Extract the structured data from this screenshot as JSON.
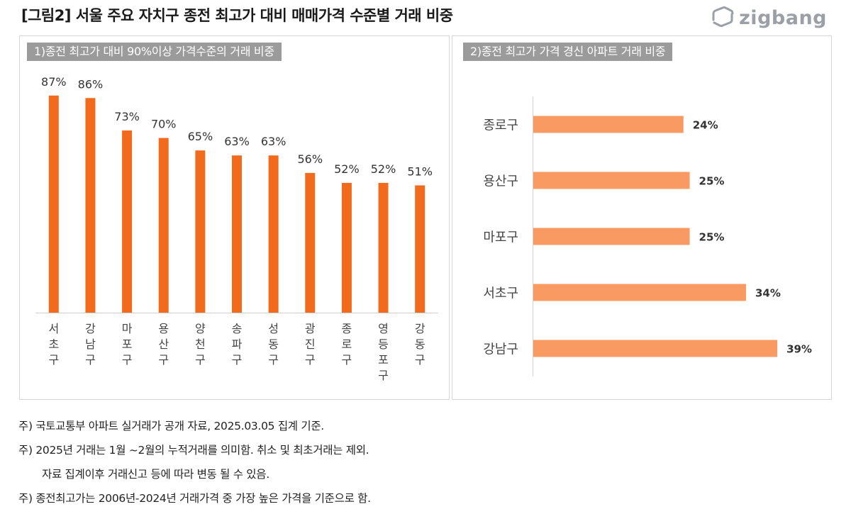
{
  "title": "[그림2] 서울 주요 자치구  종전 최고가 대비 매매가격 수준별 거래 비중",
  "logo": {
    "text": "zigbang",
    "icon": "zigbang-logo-icon"
  },
  "colors": {
    "left_bar": "#f26b1d",
    "right_bar": "#f89a62",
    "panel_header": "#9b9b9b",
    "axis": "#d0d0d0"
  },
  "chart_data": [
    {
      "type": "bar",
      "title": "1)종전 최고가 대비 90%이상 가격수준의 거래 비중",
      "categories": [
        "서초구",
        "강남구",
        "마포구",
        "용산구",
        "양천구",
        "송파구",
        "성동구",
        "광진구",
        "종로구",
        "영등포구",
        "강동구"
      ],
      "values": [
        87,
        86,
        73,
        70,
        65,
        63,
        63,
        56,
        52,
        52,
        51
      ],
      "value_suffix": "%",
      "ylim": [
        0,
        100
      ],
      "grid": false,
      "legend": "none"
    },
    {
      "type": "bar",
      "orientation": "horizontal",
      "title": "2)종전 최고가 가격 경신 아파트 거래 비중",
      "categories": [
        "종로구",
        "용산구",
        "마포구",
        "서초구",
        "강남구"
      ],
      "values": [
        24,
        25,
        25,
        34,
        39
      ],
      "value_suffix": "%",
      "xlim": [
        0,
        45
      ],
      "grid": false,
      "legend": "none"
    }
  ],
  "notes": [
    {
      "text": "주) 국토교통부 아파트 실거래가 공개 자료, 2025.03.05 집계 기준.",
      "indent": false
    },
    {
      "text": "주) 2025년 거래는 1월 ~2월의 누적거래를 의미함. 취소 및 최초거래는 제외.",
      "indent": false
    },
    {
      "text": "자료 집계이후 거래신고 등에 따라 변동 될 수 있음.",
      "indent": true
    },
    {
      "text": "주) 종전최고가는 2006년-2024년 거래가격 중 가장 높은 가격을 기준으로 함.",
      "indent": false
    }
  ]
}
